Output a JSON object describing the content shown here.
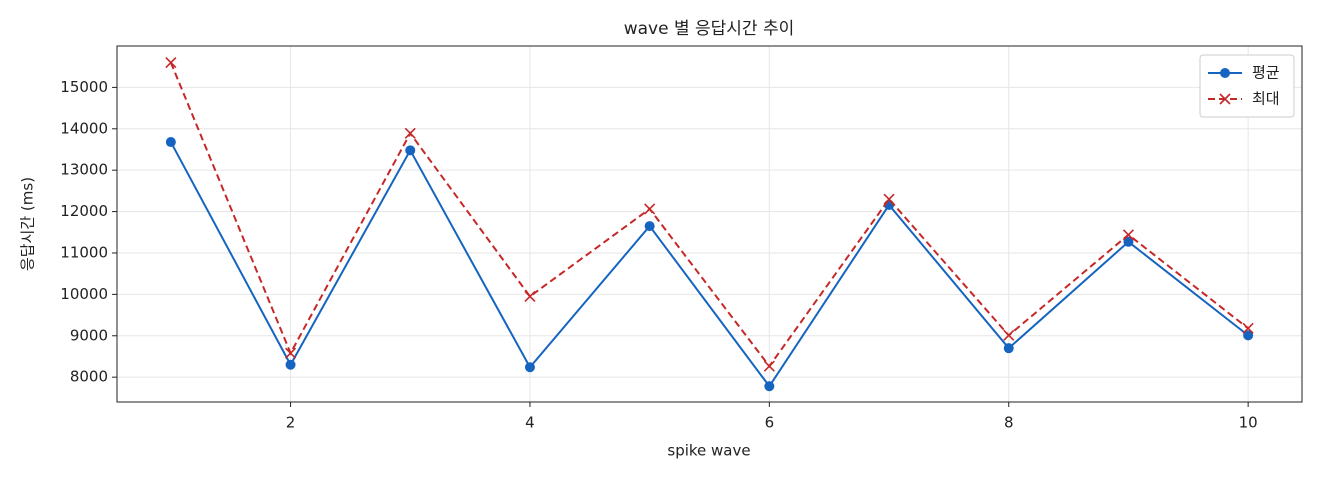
{
  "chart_data": {
    "type": "line",
    "title": "wave 별 응답시간 추이",
    "x_label": "spike wave",
    "y_label": "응답시간 (ms)",
    "x": [
      1,
      2,
      3,
      4,
      5,
      6,
      7,
      8,
      9,
      10
    ],
    "series": [
      {
        "name": "평균",
        "color": "#1565c0",
        "marker": "o",
        "linestyle": "solid",
        "values": [
          13680,
          8300,
          13480,
          8240,
          11650,
          7780,
          12160,
          8700,
          11270,
          9010
        ]
      },
      {
        "name": "최대",
        "color": "#c62828",
        "marker": "x",
        "linestyle": "dashed",
        "values": [
          15600,
          8580,
          13890,
          9950,
          12065,
          8265,
          12300,
          9010,
          11440,
          9180
        ]
      }
    ],
    "xlim": [
      0.55,
      10.45
    ],
    "xticks": [
      2,
      4,
      6,
      8,
      10
    ],
    "ylim": [
      7400,
      16000
    ],
    "yticks": [
      8000,
      9000,
      10000,
      11000,
      12000,
      13000,
      14000,
      15000
    ],
    "grid": true,
    "legend": "upper right"
  }
}
